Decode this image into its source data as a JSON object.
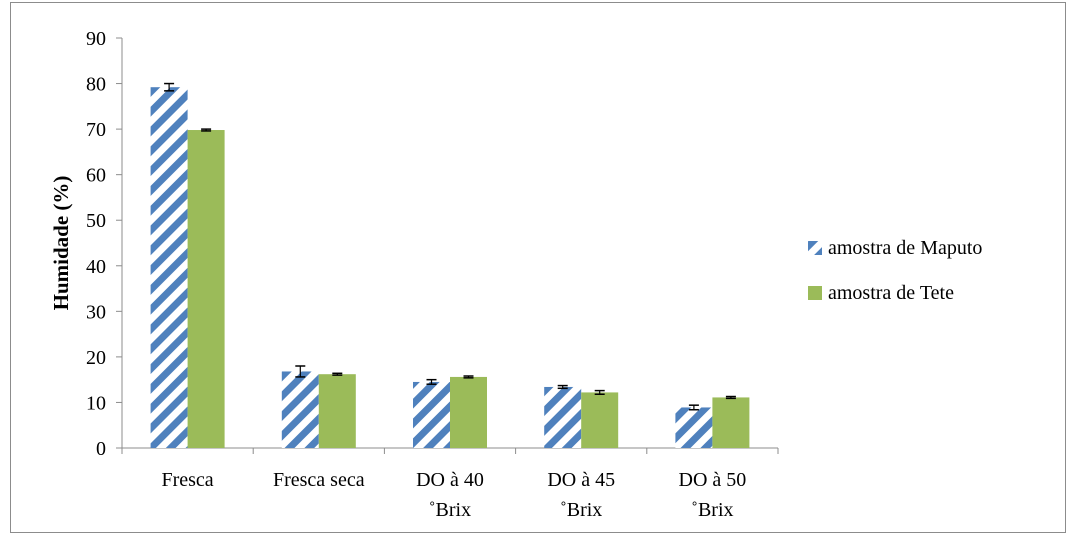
{
  "chart_data": {
    "type": "bar",
    "title": "",
    "xlabel": "",
    "ylabel": "Humidade (%)",
    "ylim": [
      0,
      90
    ],
    "yticks": [
      0,
      10,
      20,
      30,
      40,
      50,
      60,
      70,
      80,
      90
    ],
    "categories": [
      [
        "Fresca"
      ],
      [
        "Fresca seca"
      ],
      [
        "DO à 40",
        "˚Brix"
      ],
      [
        "DO à 45",
        "˚Brix"
      ],
      [
        "DO à 50",
        "˚Brix"
      ]
    ],
    "series": [
      {
        "name": "amostra de Maputo",
        "values": [
          79.2,
          16.8,
          14.5,
          13.4,
          8.9
        ],
        "errors": [
          0.8,
          1.2,
          0.5,
          0.3,
          0.5
        ],
        "color": "#4f81bd",
        "pattern": "diagonal-stripes"
      },
      {
        "name": "amostra de Tete",
        "values": [
          69.8,
          16.2,
          15.6,
          12.2,
          11.1
        ],
        "errors": [
          0.2,
          0.2,
          0.2,
          0.4,
          0.2
        ],
        "color": "#9bbb59",
        "pattern": "solid"
      }
    ],
    "grid": false,
    "legend_position": "right"
  }
}
